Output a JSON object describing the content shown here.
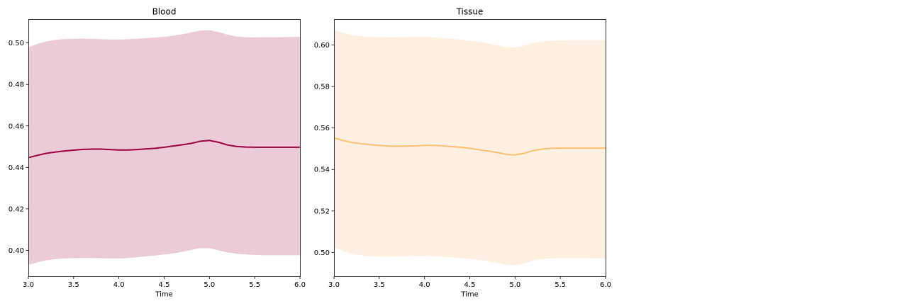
{
  "chart_data": [
    {
      "type": "line",
      "title": "Blood",
      "xlabel": "Time",
      "ylabel": "",
      "xlim": [
        3.0,
        6.0
      ],
      "ylim": [
        0.3875,
        0.5115
      ],
      "xticks": [
        3.0,
        3.5,
        4.0,
        4.5,
        5.0,
        5.5,
        6.0
      ],
      "xtick_labels": [
        "3.0",
        "3.5",
        "4.0",
        "4.5",
        "5.0",
        "5.5",
        "6.0"
      ],
      "yticks": [
        0.4,
        0.42,
        0.44,
        0.46,
        0.48,
        0.5
      ],
      "ytick_labels": [
        "0.40",
        "0.42",
        "0.44",
        "0.46",
        "0.48",
        "0.50"
      ],
      "grid": false,
      "colors": {
        "line": "#9e0142",
        "band": "#ebcbd7"
      },
      "series": [
        {
          "x": [
            3.0,
            3.1,
            3.2,
            3.3,
            3.4,
            3.5,
            3.6,
            3.7,
            3.8,
            3.9,
            4.0,
            4.1,
            4.2,
            4.3,
            4.4,
            4.5,
            4.6,
            4.7,
            4.8,
            4.9,
            5.0,
            5.1,
            5.2,
            5.3,
            5.4,
            5.5,
            5.6,
            5.7,
            5.8,
            5.9,
            6.0
          ],
          "mean": [
            0.4447,
            0.4458,
            0.4468,
            0.4474,
            0.4479,
            0.4483,
            0.4487,
            0.4488,
            0.4488,
            0.4486,
            0.4484,
            0.4484,
            0.4486,
            0.4489,
            0.4492,
            0.4497,
            0.4503,
            0.4509,
            0.4516,
            0.4526,
            0.453,
            0.4521,
            0.4508,
            0.4501,
            0.4498,
            0.4497,
            0.4497,
            0.4497,
            0.4497,
            0.4497,
            0.4497
          ],
          "lower": [
            0.393,
            0.3942,
            0.3952,
            0.3958,
            0.3961,
            0.3962,
            0.3963,
            0.3963,
            0.3962,
            0.3961,
            0.3961,
            0.3963,
            0.3967,
            0.3971,
            0.3975,
            0.398,
            0.3985,
            0.3993,
            0.4002,
            0.4011,
            0.401,
            0.4,
            0.399,
            0.3984,
            0.398,
            0.3978,
            0.3976,
            0.3976,
            0.3976,
            0.3976,
            0.3976
          ],
          "upper": [
            0.498,
            0.4995,
            0.5008,
            0.5015,
            0.5019,
            0.502,
            0.5021,
            0.502,
            0.5018,
            0.5017,
            0.5017,
            0.5018,
            0.502,
            0.5023,
            0.5026,
            0.503,
            0.5035,
            0.5042,
            0.5051,
            0.506,
            0.5062,
            0.5053,
            0.504,
            0.5031,
            0.5028,
            0.5027,
            0.5028,
            0.5028,
            0.5028,
            0.5029,
            0.5029
          ]
        }
      ]
    },
    {
      "type": "line",
      "title": "Tissue",
      "xlabel": "Time",
      "ylabel": "",
      "xlim": [
        3.0,
        6.0
      ],
      "ylim": [
        0.4885,
        0.6125
      ],
      "xticks": [
        3.0,
        3.5,
        4.0,
        4.5,
        5.0,
        5.5,
        6.0
      ],
      "xtick_labels": [
        "3.0",
        "3.5",
        "4.0",
        "4.5",
        "5.0",
        "5.5",
        "6.0"
      ],
      "yticks": [
        0.5,
        0.52,
        0.54,
        0.56,
        0.58,
        0.6
      ],
      "ytick_labels": [
        "0.50",
        "0.52",
        "0.54",
        "0.56",
        "0.58",
        "0.60"
      ],
      "grid": false,
      "colors": {
        "line": "#fdbf6f",
        "band": "#fdf0e0"
      },
      "series": [
        {
          "x": [
            3.0,
            3.1,
            3.2,
            3.3,
            3.4,
            3.5,
            3.6,
            3.7,
            3.8,
            3.9,
            4.0,
            4.1,
            4.2,
            4.3,
            4.4,
            4.5,
            4.6,
            4.7,
            4.8,
            4.9,
            5.0,
            5.1,
            5.2,
            5.3,
            5.4,
            5.5,
            5.6,
            5.7,
            5.8,
            5.9,
            6.0
          ],
          "mean": [
            0.5552,
            0.554,
            0.553,
            0.5524,
            0.552,
            0.5516,
            0.5513,
            0.5512,
            0.5513,
            0.5514,
            0.5516,
            0.5516,
            0.5514,
            0.551,
            0.5507,
            0.5502,
            0.5495,
            0.5489,
            0.5482,
            0.5473,
            0.547,
            0.5478,
            0.5491,
            0.5498,
            0.5502,
            0.5503,
            0.5503,
            0.5503,
            0.5503,
            0.5503,
            0.5503
          ],
          "lower": [
            0.5025,
            0.5006,
            0.4994,
            0.4986,
            0.4981,
            0.4979,
            0.4979,
            0.498,
            0.4982,
            0.4983,
            0.4983,
            0.4982,
            0.4979,
            0.4976,
            0.4973,
            0.4969,
            0.4964,
            0.4957,
            0.4949,
            0.494,
            0.4938,
            0.4947,
            0.496,
            0.4968,
            0.4971,
            0.4972,
            0.4972,
            0.4972,
            0.4972,
            0.4971,
            0.4971
          ],
          "upper": [
            0.6072,
            0.6058,
            0.6048,
            0.6042,
            0.6039,
            0.6038,
            0.6037,
            0.6037,
            0.6038,
            0.6039,
            0.6039,
            0.6037,
            0.6034,
            0.603,
            0.6026,
            0.6021,
            0.6016,
            0.6008,
            0.5999,
            0.599,
            0.5988,
            0.5997,
            0.601,
            0.6018,
            0.6022,
            0.6023,
            0.6024,
            0.6024,
            0.6024,
            0.6024,
            0.6024
          ]
        }
      ]
    }
  ]
}
